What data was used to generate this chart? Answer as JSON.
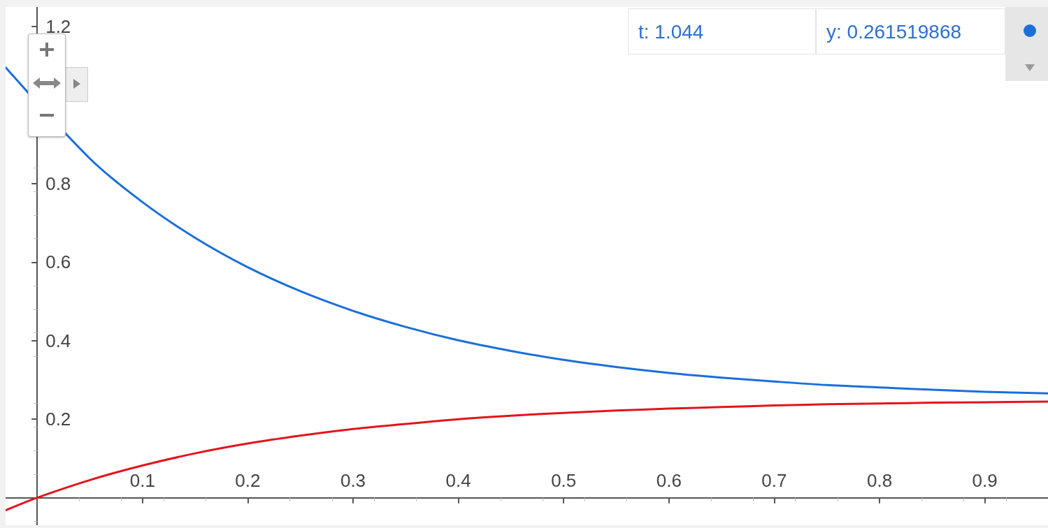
{
  "chart_data": {
    "type": "line",
    "x": [
      -0.03,
      0,
      0.05,
      0.1,
      0.15,
      0.2,
      0.25,
      0.3,
      0.35,
      0.4,
      0.45,
      0.5,
      0.55,
      0.6,
      0.65,
      0.7,
      0.75,
      0.8,
      0.85,
      0.9,
      0.96
    ],
    "series": [
      {
        "color": "#1a6fd9",
        "x": [
          -0.03,
          0.05,
          0.1,
          0.15,
          0.2,
          0.25,
          0.3,
          0.35,
          0.4,
          0.45,
          0.5,
          0.55,
          0.6,
          0.65,
          0.7,
          0.75,
          0.8,
          0.85,
          0.9,
          0.96
        ],
        "values": [
          1.096,
          0.864,
          0.753,
          0.662,
          0.587,
          0.526,
          0.476,
          0.435,
          0.401,
          0.374,
          0.351,
          0.333,
          0.318,
          0.306,
          0.296,
          0.287,
          0.281,
          0.275,
          0.27,
          0.266
        ]
      },
      {
        "color": "#e3141c",
        "values": [
          -0.032,
          0,
          0.045,
          0.082,
          0.113,
          0.138,
          0.158,
          0.175,
          0.188,
          0.2,
          0.209,
          0.216,
          0.222,
          0.227,
          0.231,
          0.235,
          0.238,
          0.24,
          0.242,
          0.243,
          0.245
        ]
      }
    ],
    "xlim": [
      -0.03,
      0.96
    ],
    "xticks": [
      0.1,
      0.2,
      0.3,
      0.4,
      0.5,
      0.6,
      0.7,
      0.8,
      0.9
    ],
    "ylim": [
      -0.07,
      1.25
    ],
    "yticks": [
      0.2,
      0.4,
      0.6,
      0.8,
      {
        "value": 1,
        "label": null
      },
      1.2
    ],
    "annotations": [
      "t: 1.044",
      "y: 0.261519868"
    ],
    "grid": false,
    "marker": "none",
    "line_style": "solid"
  }
}
